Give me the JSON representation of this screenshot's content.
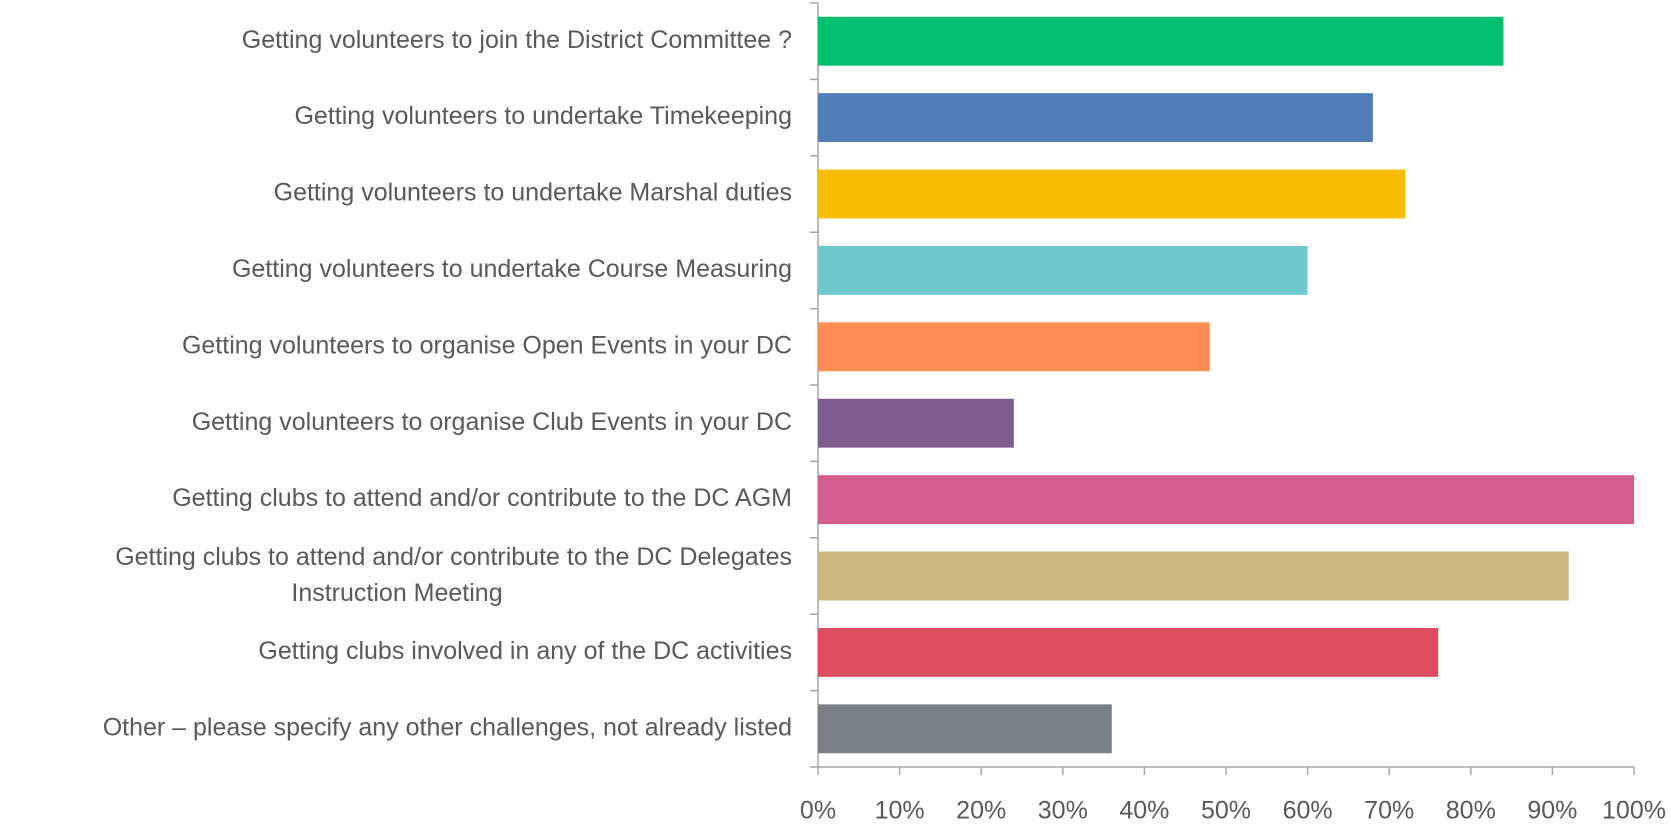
{
  "chart_data": {
    "type": "bar",
    "orientation": "horizontal",
    "categories": [
      "Getting volunteers to join the District Committee ?",
      "Getting volunteers to undertake Timekeeping",
      "Getting volunteers to undertake Marshal duties",
      "Getting volunteers to undertake Course Measuring",
      "Getting volunteers to organise Open Events in your DC",
      "Getting volunteers to organise Club Events in your DC",
      "Getting clubs to attend and/or contribute to the DC AGM",
      "Getting clubs to attend and/or contribute to the DC Delegates Instruction Meeting",
      "Getting clubs involved in any of the DC activities",
      "Other – please specify any other challenges, not already listed"
    ],
    "values": [
      84,
      68,
      72,
      60,
      48,
      24,
      100,
      92,
      76,
      36
    ],
    "colors": [
      "#00c06f",
      "#4f7db8",
      "#f8be00",
      "#6ec8cd",
      "#ff8c52",
      "#7d5e8f",
      "#d45f8e",
      "#c8b77a",
      "#dc4e5e",
      "#7a8088"
    ],
    "xlim": [
      0,
      100
    ],
    "xticks": [
      {
        "value": 0,
        "label": "0%"
      },
      {
        "value": 10,
        "label": "10%"
      },
      {
        "value": 20,
        "label": "20%"
      },
      {
        "value": 30,
        "label": "30%"
      },
      {
        "value": 40,
        "label": "40%"
      },
      {
        "value": 50,
        "label": "50%"
      },
      {
        "value": 60,
        "label": "60%"
      },
      {
        "value": 70,
        "label": "70%"
      },
      {
        "value": 80,
        "label": "80%"
      },
      {
        "value": 90,
        "label": "90%"
      },
      {
        "value": 100,
        "label": "100%"
      }
    ],
    "grid": false
  }
}
